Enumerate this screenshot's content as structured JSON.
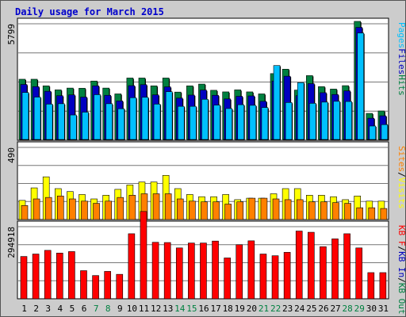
{
  "title": "Daily usage for March 2015",
  "colors": {
    "hits": "#008040",
    "files": "#0000c0",
    "pages": "#00c0ff",
    "visits": "#ffff00",
    "sites": "#ff8000",
    "kbin": "#0000c0",
    "kbout": "#008040",
    "kbf": "#ff0000",
    "weekday_label": "#008040",
    "weekend_label": "#008040"
  },
  "chart_data": [
    {
      "type": "bar",
      "name": "hits-files-pages",
      "ytick": "5799",
      "ymax": 5799,
      "legend": [
        {
          "label": "Pages",
          "color": "#00c0ff"
        },
        {
          "label": "Files",
          "color": "#0000c0"
        },
        {
          "label": "Hits",
          "color": "#008040"
        }
      ],
      "categories": [
        "1",
        "2",
        "3",
        "4",
        "5",
        "6",
        "7",
        "8",
        "9",
        "10",
        "11",
        "12",
        "13",
        "14",
        "15",
        "16",
        "17",
        "18",
        "19",
        "20",
        "21",
        "22",
        "23",
        "24",
        "25",
        "26",
        "27",
        "28",
        "29",
        "30",
        "31"
      ],
      "series": [
        {
          "name": "Hits",
          "color": "#008040",
          "values": [
            2960,
            2960,
            2630,
            2430,
            2520,
            2510,
            2870,
            2520,
            2230,
            3020,
            3020,
            2630,
            3020,
            2320,
            2630,
            2720,
            2410,
            2330,
            2430,
            2330,
            2230,
            3240,
            3460,
            2420,
            3140,
            2590,
            2470,
            2640,
            5840,
            1260,
            1380
          ]
        },
        {
          "name": "Files",
          "color": "#0000c0",
          "values": [
            2740,
            2630,
            2400,
            2180,
            2220,
            2110,
            2670,
            2200,
            1920,
            2680,
            2730,
            2220,
            2620,
            2060,
            2210,
            2460,
            2200,
            2020,
            2150,
            2170,
            1900,
            2910,
            3150,
            2180,
            2780,
            2330,
            2240,
            2420,
            5580,
            1060,
            1180
          ]
        },
        {
          "name": "Pages",
          "color": "#00c0ff",
          "values": [
            2380,
            2150,
            1800,
            1820,
            1260,
            1400,
            2270,
            1820,
            1570,
            2120,
            2140,
            1800,
            2420,
            1690,
            1690,
            2040,
            1750,
            1580,
            1770,
            1740,
            1630,
            3720,
            1880,
            2870,
            1840,
            1900,
            1940,
            1930,
            5340,
            710,
            780
          ]
        }
      ]
    },
    {
      "type": "bar",
      "name": "visits-sites",
      "ytick": "490",
      "ymax": 490,
      "legend": [
        {
          "label": "Sites",
          "color": "#ff8000"
        },
        {
          "label": "/",
          "color": "#000000"
        },
        {
          "label": "Visits",
          "color": "#ffff00"
        }
      ],
      "categories": [
        "1",
        "2",
        "3",
        "4",
        "5",
        "6",
        "7",
        "8",
        "9",
        "10",
        "11",
        "12",
        "13",
        "14",
        "15",
        "16",
        "17",
        "18",
        "19",
        "20",
        "21",
        "22",
        "23",
        "24",
        "25",
        "26",
        "27",
        "28",
        "29",
        "30",
        "31"
      ],
      "series": [
        {
          "name": "Visits",
          "color": "#ffff00",
          "values": [
            130,
            215,
            290,
            210,
            190,
            170,
            140,
            165,
            205,
            235,
            255,
            255,
            300,
            210,
            170,
            155,
            155,
            170,
            135,
            145,
            145,
            175,
            210,
            210,
            165,
            165,
            155,
            135,
            160,
            125,
            125
          ]
        },
        {
          "name": "Sites",
          "color": "#ff8000",
          "values": [
            95,
            140,
            150,
            160,
            140,
            125,
            110,
            125,
            150,
            165,
            175,
            175,
            175,
            140,
            125,
            120,
            120,
            105,
            120,
            145,
            145,
            140,
            135,
            135,
            120,
            120,
            115,
            110,
            80,
            80,
            75
          ]
        }
      ]
    },
    {
      "type": "bar",
      "name": "kbytes",
      "ytick": "294918",
      "ymax": 294918,
      "legend": [
        {
          "label": "KB F",
          "color": "#ff0000"
        },
        {
          "label": "/",
          "color": "#000000"
        },
        {
          "label": "KB In",
          "color": "#0000c0"
        },
        {
          "label": "/",
          "color": "#000000"
        },
        {
          "label": "KB Out",
          "color": "#008040"
        }
      ],
      "categories": [
        "1",
        "2",
        "3",
        "4",
        "5",
        "6",
        "7",
        "8",
        "9",
        "10",
        "11",
        "12",
        "13",
        "14",
        "15",
        "16",
        "17",
        "18",
        "19",
        "20",
        "21",
        "22",
        "23",
        "24",
        "25",
        "26",
        "27",
        "28",
        "29",
        "30",
        "31"
      ],
      "series": [
        {
          "name": "KB F",
          "color": "#ff0000",
          "values": [
            173000,
            183000,
            198000,
            187000,
            193000,
            115000,
            95000,
            112000,
            100000,
            266000,
            357000,
            231000,
            230000,
            208000,
            228000,
            228000,
            236000,
            167000,
            221000,
            237000,
            183000,
            176000,
            190000,
            277000,
            272000,
            213000,
            245000,
            266000,
            208000,
            107000,
            107000
          ]
        }
      ]
    }
  ],
  "days": [
    {
      "label": "1",
      "weekend": false
    },
    {
      "label": "2",
      "weekend": false
    },
    {
      "label": "3",
      "weekend": false
    },
    {
      "label": "4",
      "weekend": false
    },
    {
      "label": "5",
      "weekend": false
    },
    {
      "label": "6",
      "weekend": false
    },
    {
      "label": "7",
      "weekend": true
    },
    {
      "label": "8",
      "weekend": true
    },
    {
      "label": "9",
      "weekend": false
    },
    {
      "label": "10",
      "weekend": false
    },
    {
      "label": "11",
      "weekend": false
    },
    {
      "label": "12",
      "weekend": false
    },
    {
      "label": "13",
      "weekend": false
    },
    {
      "label": "14",
      "weekend": true
    },
    {
      "label": "15",
      "weekend": true
    },
    {
      "label": "16",
      "weekend": false
    },
    {
      "label": "17",
      "weekend": false
    },
    {
      "label": "18",
      "weekend": false
    },
    {
      "label": "19",
      "weekend": false
    },
    {
      "label": "20",
      "weekend": false
    },
    {
      "label": "21",
      "weekend": true
    },
    {
      "label": "22",
      "weekend": true
    },
    {
      "label": "23",
      "weekend": false
    },
    {
      "label": "24",
      "weekend": false
    },
    {
      "label": "25",
      "weekend": false
    },
    {
      "label": "26",
      "weekend": false
    },
    {
      "label": "27",
      "weekend": false
    },
    {
      "label": "28",
      "weekend": true
    },
    {
      "label": "29",
      "weekend": true
    },
    {
      "label": "30",
      "weekend": false
    },
    {
      "label": "31",
      "weekend": false
    }
  ]
}
